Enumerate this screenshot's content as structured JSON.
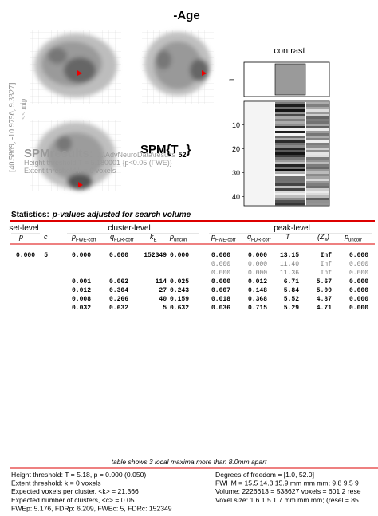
{
  "header": {
    "title": "-Age"
  },
  "mip": {
    "coordinates": "[40.5869, -10.9756, 9.3327]",
    "label": "<< mip"
  },
  "results": {
    "name": "SPMresults:",
    "path": "...\\AdvNeuroData\\results",
    "height": "Height threshold T = 5.180001  {p<0.05 (FWE)}",
    "extent": "Extent threshold k = 0 voxels"
  },
  "spm": {
    "main": "SPM{T",
    "sub": "52",
    "close": "}"
  },
  "design": {
    "contrast_title": "contrast",
    "contrast_tick": 1,
    "ticks": [
      10,
      20,
      30,
      40
    ]
  },
  "statistics": {
    "label": "Statistics:",
    "subtitle": "p-values adjusted for search volume"
  },
  "table": {
    "groups": [
      "set-level",
      "cluster-level",
      "peak-level"
    ],
    "columns": [
      {
        "main": "p"
      },
      {
        "main": "c"
      },
      {
        "main": "p",
        "sub": "FWE-corr"
      },
      {
        "main": "q",
        "sub": "FDR-corr"
      },
      {
        "main": "k",
        "sub": "E"
      },
      {
        "main": "p",
        "sub": "uncorr"
      },
      {
        "main": "p",
        "sub": "FWE-corr"
      },
      {
        "main": "q",
        "sub": "FDR-corr"
      },
      {
        "main": "T"
      },
      {
        "main": "(Z",
        "sub": "≡",
        "close": ")"
      },
      {
        "main": "p",
        "sub": "uncorr"
      }
    ],
    "rows": [
      [
        "0.000",
        "5",
        "0.000",
        "0.000",
        "152349",
        "0.000",
        "0.000",
        "0.000",
        "13.15",
        "Inf",
        "0.000"
      ],
      [
        null,
        null,
        null,
        null,
        null,
        null,
        "0.000",
        "0.000",
        "11.40",
        "Inf",
        "0.000"
      ],
      [
        null,
        null,
        null,
        null,
        null,
        null,
        "0.000",
        "0.000",
        "11.36",
        "Inf",
        "0.000"
      ],
      [
        null,
        null,
        "0.001",
        "0.062",
        "114",
        "0.025",
        "0.000",
        "0.012",
        "6.71",
        "5.67",
        "0.000"
      ],
      [
        null,
        null,
        "0.012",
        "0.304",
        "27",
        "0.243",
        "0.007",
        "0.148",
        "5.84",
        "5.09",
        "0.000"
      ],
      [
        null,
        null,
        "0.008",
        "0.266",
        "40",
        "0.159",
        "0.018",
        "0.368",
        "5.52",
        "4.87",
        "0.000"
      ],
      [
        null,
        null,
        "0.032",
        "0.632",
        "5",
        "0.632",
        "0.036",
        "0.715",
        "5.29",
        "4.71",
        "0.000"
      ]
    ]
  },
  "footer": {
    "caption": "table shows 3 local maxima more than 8.0mm apart",
    "left": [
      "Height threshold: T = 5.18, p = 0.000 (0.050)",
      "Extent threshold: k = 0 voxels",
      "Expected voxels per cluster, <k> = 21.366",
      "Expected number of clusters, <c> = 0.05",
      "FWEp: 5.176, FDRp: 6.209, FWEc: 5, FDRc: 152349"
    ],
    "right": [
      "Degrees of freedom = [1.0, 52.0]",
      "FWHM = 15.5 14.3 15.9 mm mm mm; 9.8 9.5 9",
      "Volume: 2226613 = 538627 voxels = 601.2 rese",
      "Voxel size: 1.6 1.5 1.7 mm mm mm; (resel = 85"
    ]
  }
}
